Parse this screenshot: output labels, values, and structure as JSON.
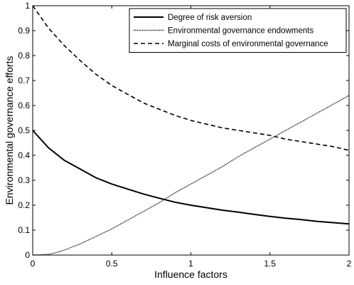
{
  "chart_data": {
    "type": "line",
    "title": "",
    "xlabel": "Influence factors",
    "ylabel": "Environmental governance efforts",
    "xlim": [
      0,
      2
    ],
    "ylim": [
      0,
      1
    ],
    "xticks": [
      "0",
      "0.5",
      "1",
      "1.5",
      "2"
    ],
    "yticks": [
      "0",
      "0.1",
      "0.2",
      "0.3",
      "0.4",
      "0.5",
      "0.6",
      "0.7",
      "0.8",
      "0.9",
      "1"
    ],
    "grid": false,
    "legend_position": "top-right",
    "series": [
      {
        "name": "Degree of risk aversion",
        "style": "solid",
        "x": [
          0,
          0.1,
          0.2,
          0.3,
          0.4,
          0.5,
          0.6,
          0.7,
          0.8,
          0.9,
          1.0,
          1.1,
          1.2,
          1.3,
          1.4,
          1.5,
          1.6,
          1.7,
          1.8,
          1.9,
          2.0
        ],
        "y": [
          0.5,
          0.43,
          0.38,
          0.345,
          0.31,
          0.285,
          0.265,
          0.245,
          0.228,
          0.212,
          0.2,
          0.19,
          0.18,
          0.172,
          0.163,
          0.155,
          0.148,
          0.142,
          0.135,
          0.13,
          0.125
        ]
      },
      {
        "name": "Environmental governance endowments",
        "style": "dotted",
        "x": [
          0,
          0.1,
          0.15,
          0.2,
          0.3,
          0.4,
          0.5,
          0.6,
          0.7,
          0.8,
          0.9,
          1.0,
          1.1,
          1.2,
          1.3,
          1.4,
          1.5,
          1.6,
          1.7,
          1.8,
          1.9,
          2.0
        ],
        "y": [
          0,
          0.003,
          0.01,
          0.02,
          0.045,
          0.075,
          0.105,
          0.14,
          0.175,
          0.21,
          0.25,
          0.285,
          0.32,
          0.355,
          0.395,
          0.43,
          0.465,
          0.5,
          0.535,
          0.57,
          0.605,
          0.64
        ]
      },
      {
        "name": "Marginal costs of environmental governance",
        "style": "dashed",
        "x": [
          0,
          0.1,
          0.2,
          0.3,
          0.4,
          0.5,
          0.6,
          0.7,
          0.8,
          0.9,
          1.0,
          1.1,
          1.2,
          1.3,
          1.4,
          1.5,
          1.6,
          1.7,
          1.8,
          1.9,
          2.0
        ],
        "y": [
          1.0,
          0.91,
          0.84,
          0.78,
          0.725,
          0.68,
          0.645,
          0.61,
          0.585,
          0.56,
          0.54,
          0.525,
          0.51,
          0.5,
          0.49,
          0.48,
          0.465,
          0.455,
          0.445,
          0.435,
          0.42
        ]
      }
    ]
  }
}
